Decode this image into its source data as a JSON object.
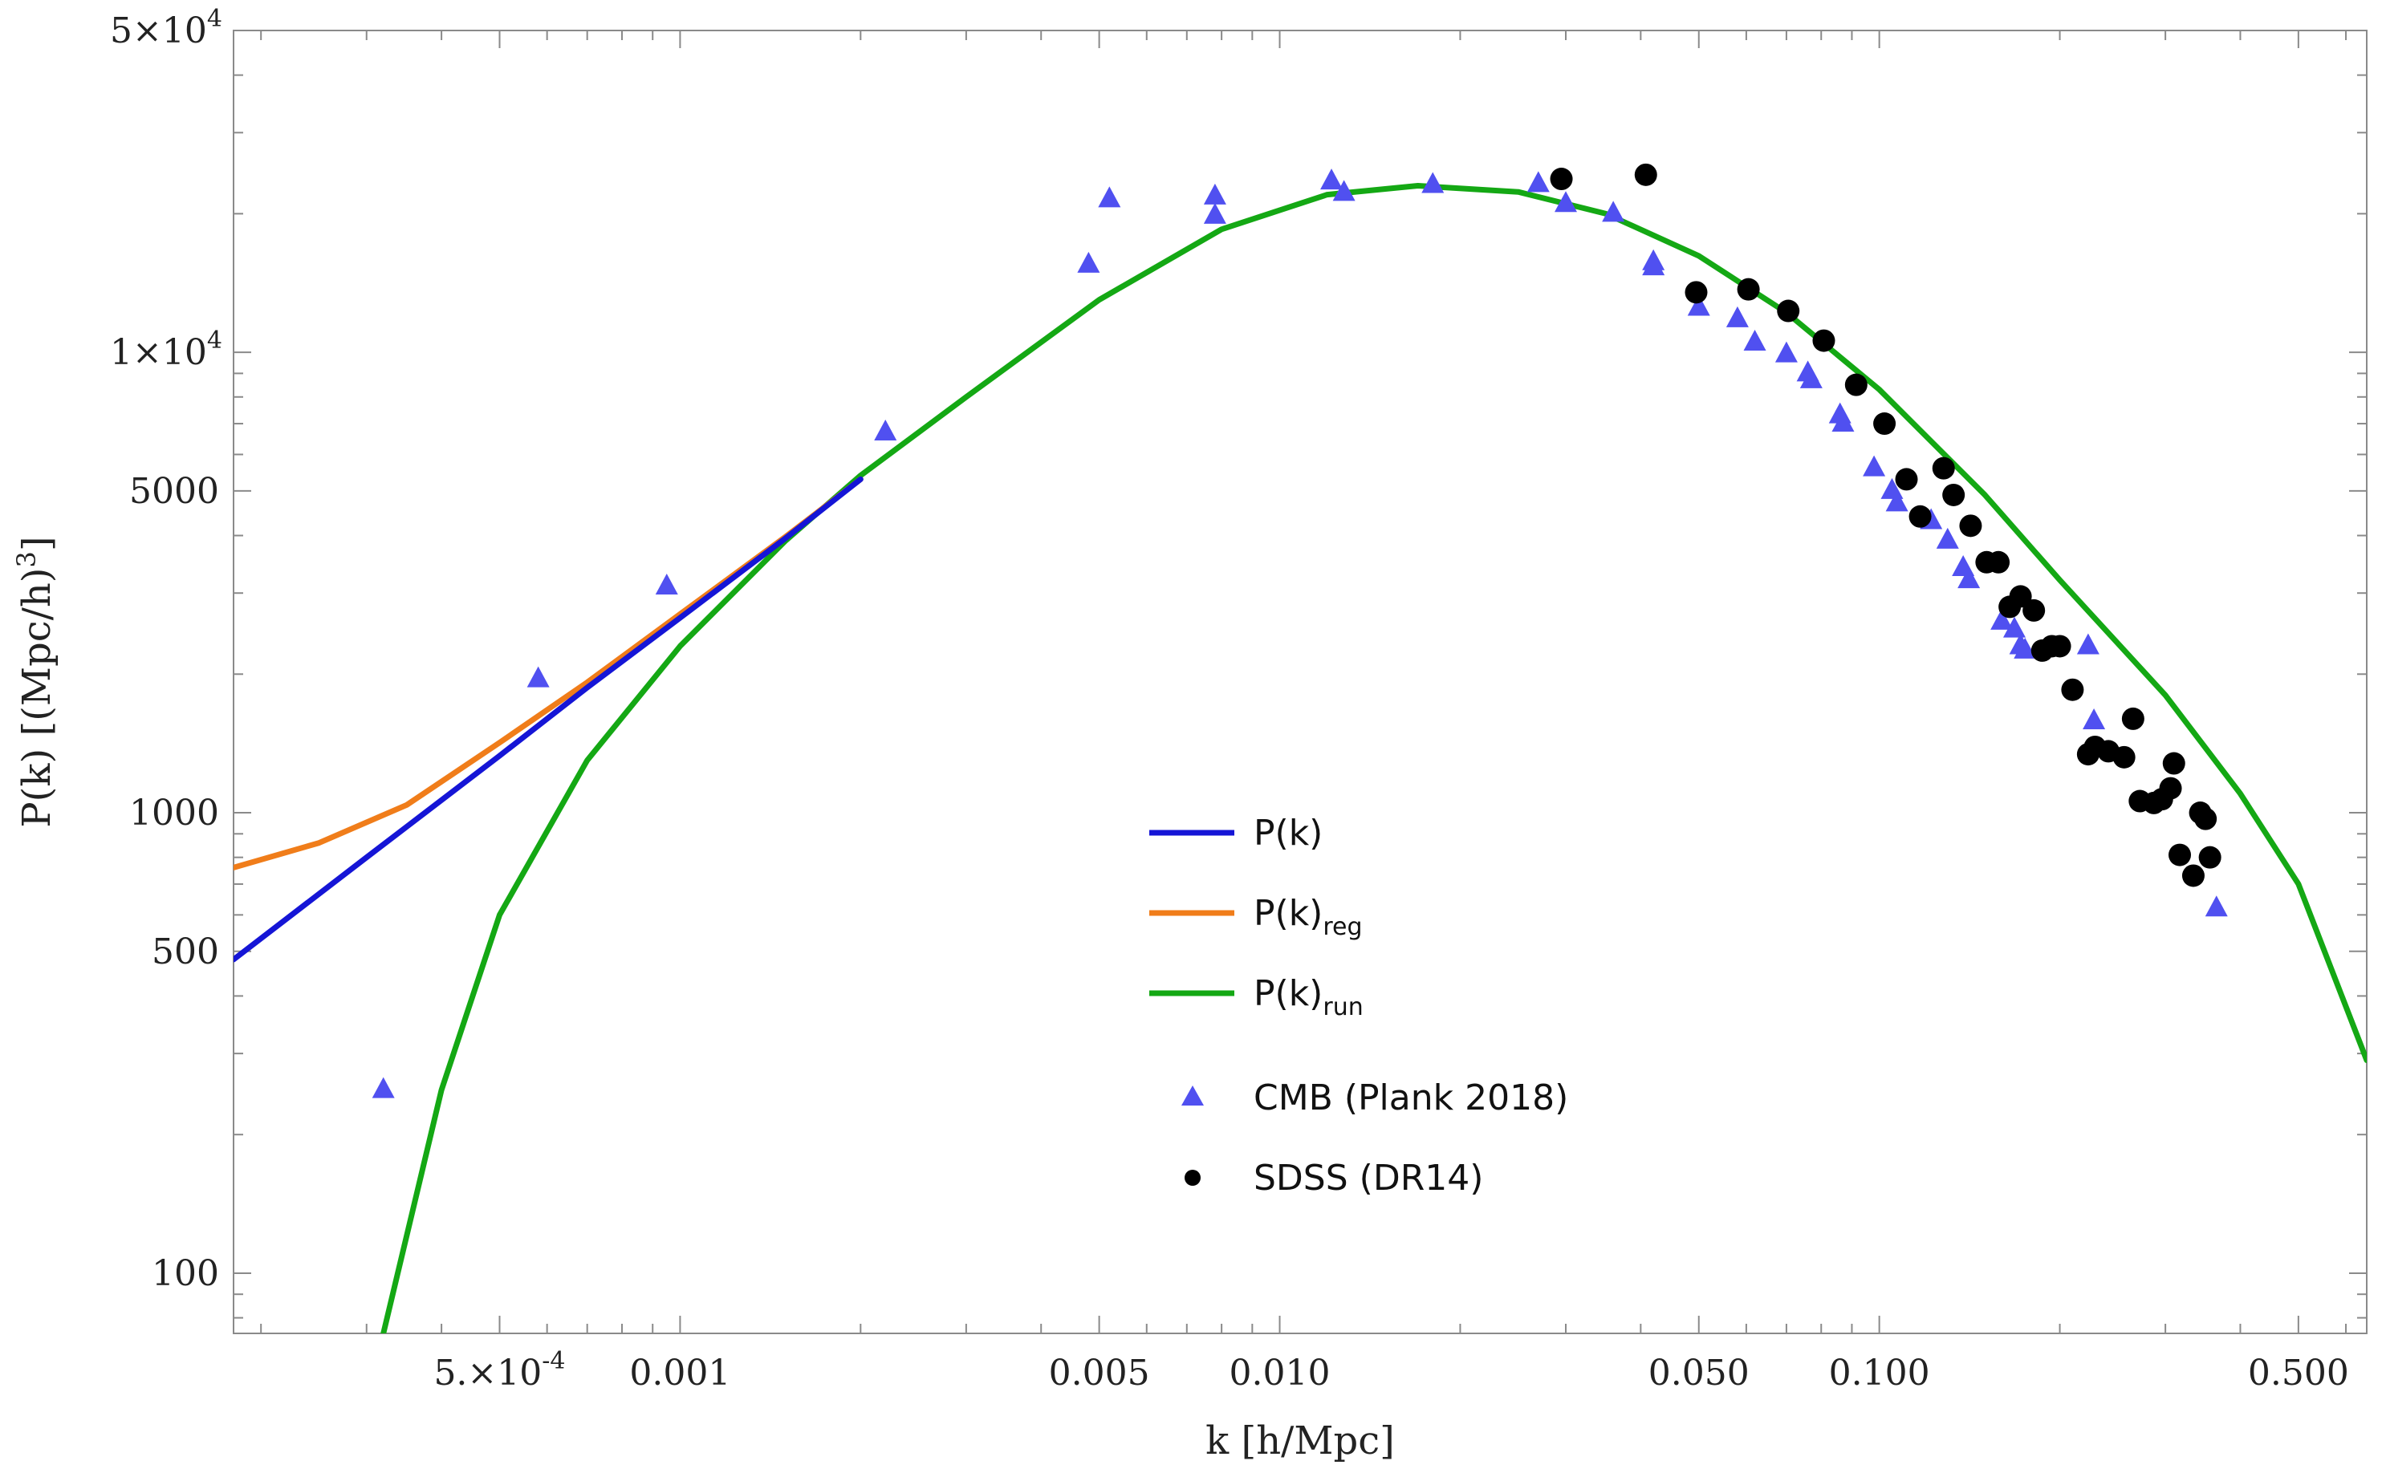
{
  "chart_data": {
    "type": "scatter",
    "x_scale": "log",
    "y_scale": "log",
    "xlim": [
      0.00018,
      0.65
    ],
    "ylim": [
      74,
      50000
    ],
    "xlabel": "k [h/Mpc]",
    "ylabel": "P(k) [(Mpc/h)^3]",
    "ylabel_parts": {
      "main": "P(k) [(Mpc/h)",
      "sup": "3",
      "tail": "]"
    },
    "grid": false,
    "legend_position": "center",
    "x_ticks": [
      {
        "value": 0.0005,
        "mantissa": "5.",
        "base": "10",
        "exp": "-4"
      },
      {
        "value": 0.001,
        "label": "0.001"
      },
      {
        "value": 0.005,
        "label": "0.005"
      },
      {
        "value": 0.01,
        "label": "0.010"
      },
      {
        "value": 0.05,
        "label": "0.050"
      },
      {
        "value": 0.1,
        "label": "0.100"
      },
      {
        "value": 0.5,
        "label": "0.500"
      }
    ],
    "y_ticks": [
      {
        "value": 100,
        "label": "100"
      },
      {
        "value": 500,
        "label": "500"
      },
      {
        "value": 1000,
        "label": "1000"
      },
      {
        "value": 5000,
        "label": "5000"
      },
      {
        "value": 10000,
        "mantissa": "1",
        "base": "10",
        "exp": "4"
      },
      {
        "value": 50000,
        "mantissa": "5",
        "base": "10",
        "exp": "4"
      }
    ],
    "series": [
      {
        "name": "P(k)",
        "label_main": "P(k)",
        "label_sub": "",
        "kind": "line",
        "color": "#1515d6",
        "points": [
          [
            0.00018,
            480
          ],
          [
            0.0003,
            800
          ],
          [
            0.0005,
            1330
          ],
          [
            0.0007,
            1870
          ],
          [
            0.001,
            2650
          ],
          [
            0.0015,
            3950
          ],
          [
            0.002,
            5300
          ]
        ]
      },
      {
        "name": "P(k)reg",
        "label_main": "P(k)",
        "label_sub": "reg",
        "kind": "line",
        "color": "#f07d1a",
        "points": [
          [
            0.00018,
            760
          ],
          [
            0.00025,
            860
          ],
          [
            0.00035,
            1040
          ],
          [
            0.0005,
            1420
          ],
          [
            0.0007,
            1920
          ],
          [
            0.001,
            2700
          ],
          [
            0.0015,
            3980
          ],
          [
            0.002,
            5300
          ]
        ]
      },
      {
        "name": "P(k)run",
        "label_main": "P(k)",
        "label_sub": "run",
        "kind": "line",
        "color": "#14a814",
        "points": [
          [
            0.00032,
            74
          ],
          [
            0.0004,
            250
          ],
          [
            0.0005,
            600
          ],
          [
            0.0007,
            1300
          ],
          [
            0.001,
            2300
          ],
          [
            0.0015,
            3900
          ],
          [
            0.002,
            5400
          ],
          [
            0.003,
            8000
          ],
          [
            0.005,
            13000
          ],
          [
            0.008,
            18500
          ],
          [
            0.012,
            22000
          ],
          [
            0.017,
            23000
          ],
          [
            0.025,
            22300
          ],
          [
            0.035,
            20000
          ],
          [
            0.05,
            16200
          ],
          [
            0.07,
            12200
          ],
          [
            0.1,
            8300
          ],
          [
            0.15,
            4900
          ],
          [
            0.2,
            3200
          ],
          [
            0.3,
            1800
          ],
          [
            0.4,
            1100
          ],
          [
            0.5,
            700
          ],
          [
            0.65,
            290
          ]
        ]
      },
      {
        "name": "CMB (Plank 2018)",
        "label_main": "CMB (Plank 2018)",
        "label_sub": "",
        "kind": "triangle",
        "color": "#5050f0",
        "points": [
          [
            0.00032,
            250
          ],
          [
            0.00058,
            1950
          ],
          [
            0.00095,
            3100
          ],
          [
            0.0022,
            6700
          ],
          [
            0.0048,
            15500
          ],
          [
            0.0052,
            21500
          ],
          [
            0.0078,
            21800
          ],
          [
            0.0078,
            19800
          ],
          [
            0.0122,
            23500
          ],
          [
            0.0128,
            22200
          ],
          [
            0.018,
            23100
          ],
          [
            0.027,
            23200
          ],
          [
            0.03,
            21000
          ],
          [
            0.036,
            20000
          ],
          [
            0.042,
            15700
          ],
          [
            0.042,
            15300
          ],
          [
            0.05,
            12500
          ],
          [
            0.058,
            11800
          ],
          [
            0.062,
            10500
          ],
          [
            0.07,
            9900
          ],
          [
            0.076,
            9000
          ],
          [
            0.077,
            8700
          ],
          [
            0.086,
            7300
          ],
          [
            0.087,
            7000
          ],
          [
            0.098,
            5600
          ],
          [
            0.105,
            5000
          ],
          [
            0.107,
            4700
          ],
          [
            0.122,
            4300
          ],
          [
            0.13,
            3900
          ],
          [
            0.138,
            3400
          ],
          [
            0.141,
            3200
          ],
          [
            0.16,
            2600
          ],
          [
            0.168,
            2500
          ],
          [
            0.172,
            2300
          ],
          [
            0.175,
            2250
          ],
          [
            0.223,
            2300
          ],
          [
            0.228,
            1580
          ],
          [
            0.365,
            620
          ]
        ]
      },
      {
        "name": "SDSS (DR14)",
        "label_main": "SDSS (DR14)",
        "label_sub": "",
        "kind": "circle",
        "color": "#000000",
        "points": [
          [
            0.0295,
            23800
          ],
          [
            0.0408,
            24300
          ],
          [
            0.0495,
            13500
          ],
          [
            0.0605,
            13700
          ],
          [
            0.0705,
            12300
          ],
          [
            0.0808,
            10600
          ],
          [
            0.0915,
            8500
          ],
          [
            0.102,
            7000
          ],
          [
            0.111,
            5300
          ],
          [
            0.117,
            4400
          ],
          [
            0.128,
            5600
          ],
          [
            0.133,
            4900
          ],
          [
            0.142,
            4200
          ],
          [
            0.151,
            3500
          ],
          [
            0.158,
            3500
          ],
          [
            0.165,
            2800
          ],
          [
            0.172,
            2950
          ],
          [
            0.181,
            2750
          ],
          [
            0.187,
            2250
          ],
          [
            0.194,
            2300
          ],
          [
            0.2,
            2300
          ],
          [
            0.21,
            1850
          ],
          [
            0.223,
            1340
          ],
          [
            0.229,
            1390
          ],
          [
            0.241,
            1360
          ],
          [
            0.256,
            1320
          ],
          [
            0.265,
            1600
          ],
          [
            0.272,
            1060
          ],
          [
            0.287,
            1050
          ],
          [
            0.296,
            1070
          ],
          [
            0.306,
            1130
          ],
          [
            0.31,
            1280
          ],
          [
            0.317,
            810
          ],
          [
            0.334,
            730
          ],
          [
            0.343,
            1000
          ],
          [
            0.35,
            970
          ],
          [
            0.356,
            800
          ]
        ]
      }
    ]
  }
}
